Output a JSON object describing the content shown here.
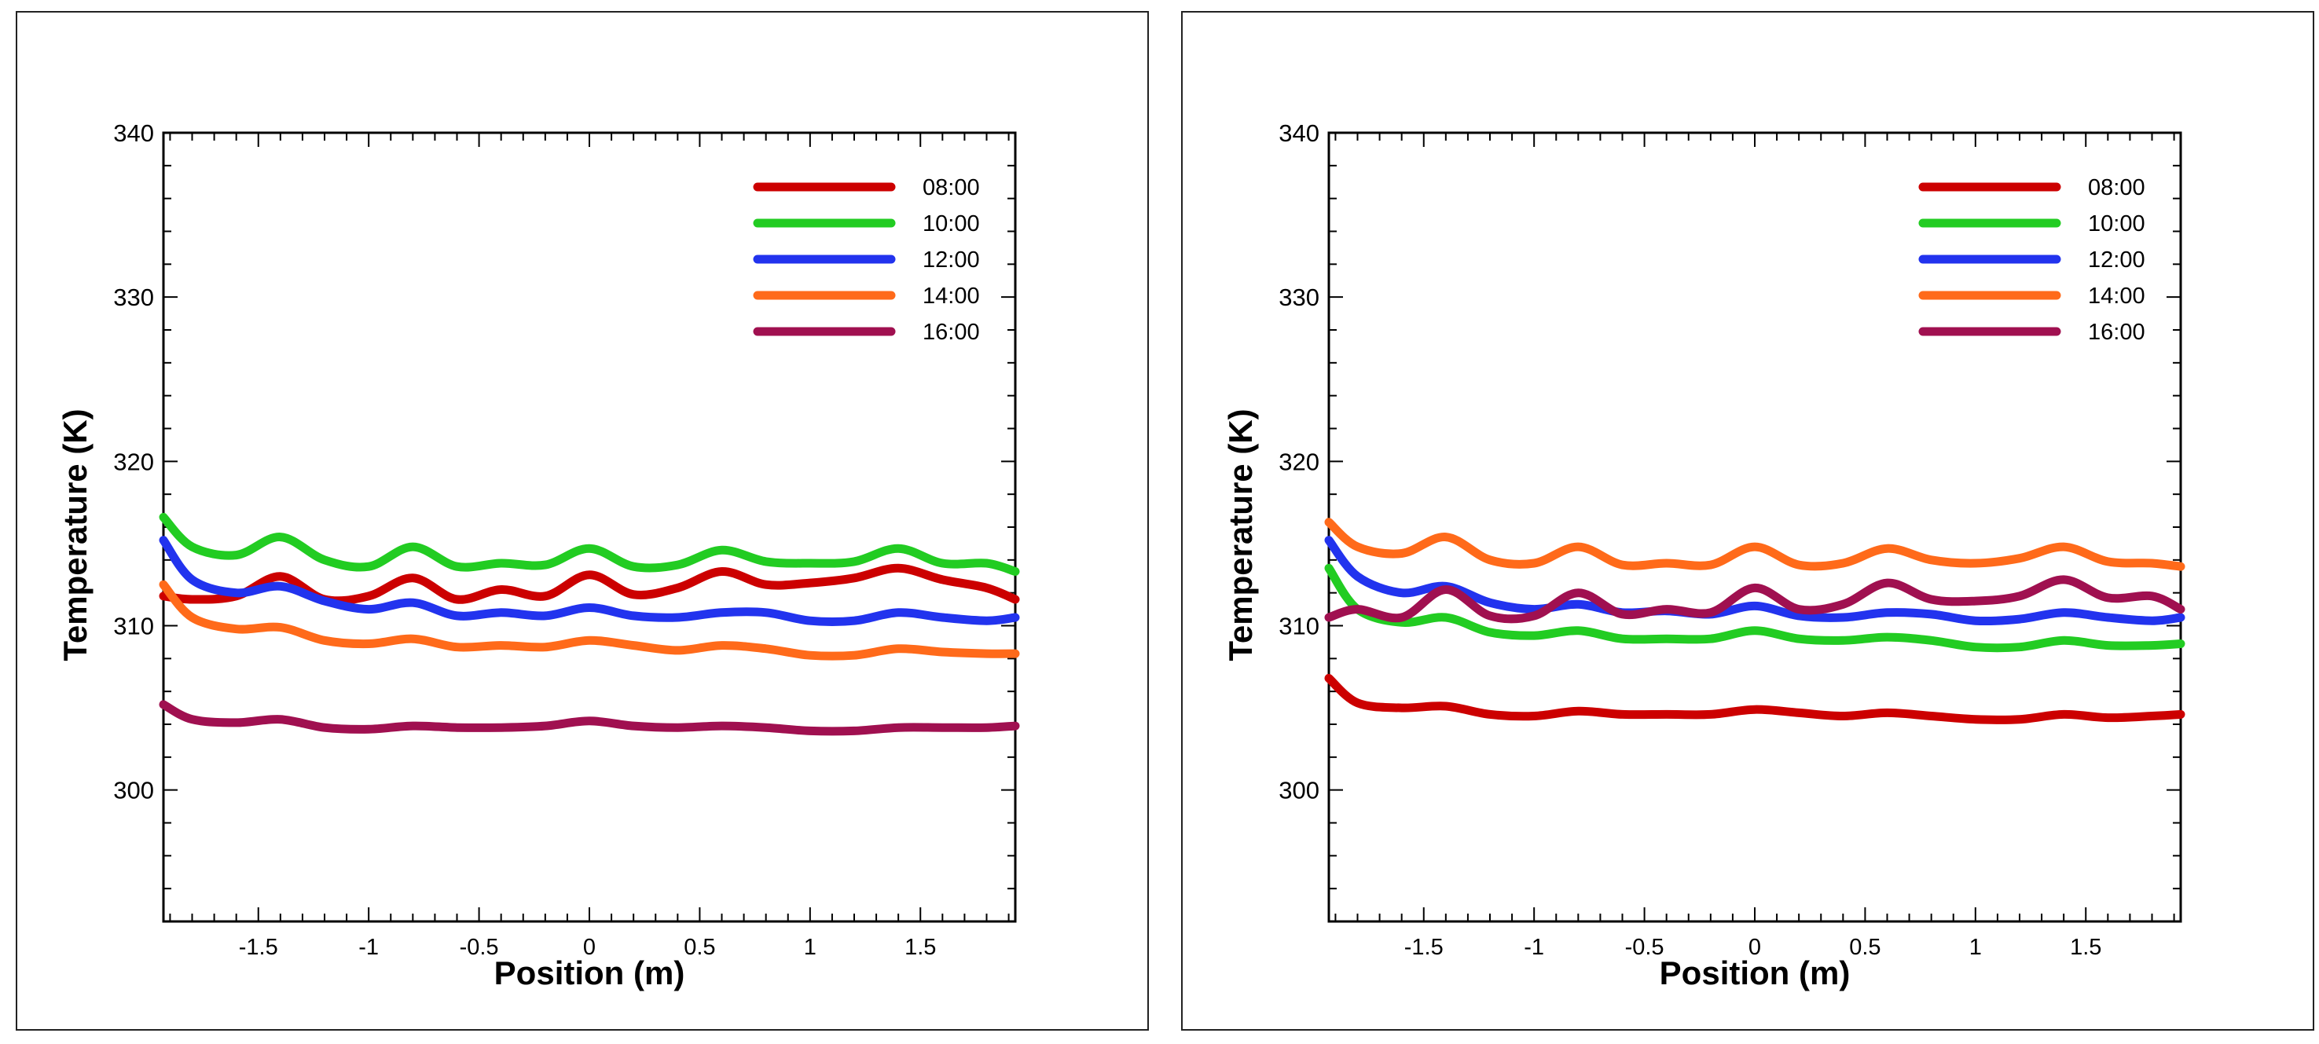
{
  "chart_data": [
    {
      "type": "line",
      "title": "",
      "xlabel": "Position (m)",
      "ylabel": "Temperature (K)",
      "xlim": [
        -1.93,
        1.93
      ],
      "ylim": [
        292,
        340
      ],
      "x_ticks": [
        -1.5,
        -1,
        -0.5,
        0,
        0.5,
        1,
        1.5
      ],
      "x_tick_labels": [
        "-1.5",
        "-1",
        "-0.5",
        "0",
        "0.5",
        "1",
        "1.5"
      ],
      "y_ticks": [
        300,
        310,
        320,
        330,
        340
      ],
      "y_tick_labels": [
        "300",
        "310",
        "320",
        "330",
        "340"
      ],
      "grid": false,
      "legend_position": "top-right",
      "x": [
        -1.93,
        -1.8,
        -1.6,
        -1.4,
        -1.2,
        -1.0,
        -0.8,
        -0.6,
        -0.4,
        -0.2,
        0.0,
        0.2,
        0.4,
        0.6,
        0.8,
        1.0,
        1.2,
        1.4,
        1.6,
        1.8,
        1.93
      ],
      "series": [
        {
          "name": "08:00",
          "color": "#cc0000",
          "values": [
            311.8,
            311.6,
            311.8,
            313.0,
            311.6,
            311.8,
            312.9,
            311.6,
            312.2,
            311.8,
            313.1,
            311.9,
            312.3,
            313.3,
            312.5,
            312.6,
            312.9,
            313.5,
            312.8,
            312.3,
            311.6
          ]
        },
        {
          "name": "10:00",
          "color": "#22cc22",
          "values": [
            316.6,
            314.8,
            314.3,
            315.4,
            314.0,
            313.6,
            314.8,
            313.6,
            313.8,
            313.7,
            314.7,
            313.6,
            313.7,
            314.6,
            313.9,
            313.8,
            313.9,
            314.7,
            313.8,
            313.8,
            313.3
          ]
        },
        {
          "name": "12:00",
          "color": "#2233ee",
          "values": [
            315.2,
            312.8,
            312.0,
            312.4,
            311.5,
            311.0,
            311.4,
            310.6,
            310.8,
            310.6,
            311.1,
            310.6,
            310.5,
            310.8,
            310.8,
            310.3,
            310.3,
            310.8,
            310.5,
            310.3,
            310.5
          ]
        },
        {
          "name": "14:00",
          "color": "#ff6a1a",
          "values": [
            312.5,
            310.5,
            309.8,
            309.9,
            309.1,
            308.9,
            309.2,
            308.7,
            308.8,
            308.7,
            309.1,
            308.8,
            308.5,
            308.8,
            308.6,
            308.2,
            308.2,
            308.6,
            308.4,
            308.3,
            308.3
          ]
        },
        {
          "name": "16:00",
          "color": "#a01050",
          "values": [
            305.2,
            304.3,
            304.1,
            304.3,
            303.8,
            303.7,
            303.9,
            303.8,
            303.8,
            303.9,
            304.2,
            303.9,
            303.8,
            303.9,
            303.8,
            303.6,
            303.6,
            303.8,
            303.8,
            303.8,
            303.9
          ]
        }
      ]
    },
    {
      "type": "line",
      "title": "",
      "xlabel": "Position (m)",
      "ylabel": "Temperature (K)",
      "xlim": [
        -1.93,
        1.93
      ],
      "ylim": [
        292,
        340
      ],
      "x_ticks": [
        -1.5,
        -1,
        -0.5,
        0,
        0.5,
        1,
        1.5
      ],
      "x_tick_labels": [
        "-1.5",
        "-1",
        "-0.5",
        "0",
        "0.5",
        "1",
        "1.5"
      ],
      "y_ticks": [
        300,
        310,
        320,
        330,
        340
      ],
      "y_tick_labels": [
        "300",
        "310",
        "320",
        "330",
        "340"
      ],
      "grid": false,
      "legend_position": "top-right",
      "x": [
        -1.93,
        -1.8,
        -1.6,
        -1.4,
        -1.2,
        -1.0,
        -0.8,
        -0.6,
        -0.4,
        -0.2,
        0.0,
        0.2,
        0.4,
        0.6,
        0.8,
        1.0,
        1.2,
        1.4,
        1.6,
        1.8,
        1.93
      ],
      "series": [
        {
          "name": "08:00",
          "color": "#cc0000",
          "values": [
            306.8,
            305.3,
            305.0,
            305.1,
            304.6,
            304.5,
            304.8,
            304.6,
            304.6,
            304.6,
            304.9,
            304.7,
            304.5,
            304.7,
            304.5,
            304.3,
            304.3,
            304.6,
            304.4,
            304.5,
            304.6
          ]
        },
        {
          "name": "10:00",
          "color": "#22cc22",
          "values": [
            313.5,
            311.0,
            310.2,
            310.5,
            309.6,
            309.4,
            309.7,
            309.2,
            309.2,
            309.2,
            309.7,
            309.2,
            309.1,
            309.3,
            309.1,
            308.7,
            308.7,
            309.1,
            308.8,
            308.8,
            308.9
          ]
        },
        {
          "name": "12:00",
          "color": "#2233ee",
          "values": [
            315.2,
            313.0,
            312.0,
            312.4,
            311.4,
            311.0,
            311.3,
            310.8,
            310.9,
            310.7,
            311.2,
            310.6,
            310.5,
            310.8,
            310.7,
            310.3,
            310.4,
            310.8,
            310.5,
            310.3,
            310.5
          ]
        },
        {
          "name": "14:00",
          "color": "#ff6a1a",
          "values": [
            316.3,
            314.8,
            314.4,
            315.4,
            314.0,
            313.8,
            314.8,
            313.7,
            313.8,
            313.7,
            314.8,
            313.7,
            313.8,
            314.7,
            314.0,
            313.8,
            314.1,
            314.8,
            313.9,
            313.8,
            313.6
          ]
        },
        {
          "name": "16:00",
          "color": "#a01050",
          "values": [
            310.5,
            311.0,
            310.5,
            312.2,
            310.6,
            310.6,
            312.0,
            310.7,
            311.0,
            310.8,
            312.3,
            311.0,
            311.3,
            312.6,
            311.6,
            311.5,
            311.8,
            312.8,
            311.7,
            311.8,
            311.0
          ]
        }
      ]
    }
  ]
}
